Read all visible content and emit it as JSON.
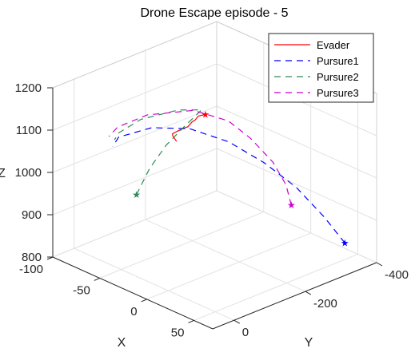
{
  "chart_data": {
    "type": "line",
    "title": "Drone Escape episode - 5",
    "xlabel": "X",
    "ylabel": "Y",
    "zlabel": "Z",
    "xlim": [
      -100,
      70
    ],
    "ylim": [
      -400,
      60
    ],
    "zlim": [
      800,
      1200
    ],
    "x_ticks": [
      -100,
      -50,
      0,
      50
    ],
    "y_ticks": [
      -400,
      -200,
      0
    ],
    "z_ticks": [
      800,
      900,
      1000,
      1100,
      1200
    ],
    "grid": true,
    "legend_position": "top-right",
    "series": [
      {
        "name": "Evader",
        "color": "#ff0000",
        "dash": "solid",
        "start_marker": true,
        "points": [
          [
            -40,
            -210,
            1105
          ],
          [
            -40,
            -190,
            1108
          ],
          [
            -38,
            -175,
            1105
          ],
          [
            -35,
            -160,
            1110
          ],
          [
            -32,
            -140,
            1108
          ],
          [
            -30,
            -120,
            1112
          ],
          [
            -28,
            -100,
            1115
          ],
          [
            -25,
            -85,
            1120
          ],
          [
            -22,
            -70,
            1125
          ],
          [
            -18,
            -60,
            1128
          ],
          [
            -12,
            -55,
            1122
          ]
        ]
      },
      {
        "name": "Pursure1",
        "color": "#0000ff",
        "dash": "8,6",
        "start_marker": true,
        "points": [
          [
            40,
            -390,
            820
          ],
          [
            30,
            -360,
            880
          ],
          [
            15,
            -320,
            950
          ],
          [
            0,
            -270,
            1010
          ],
          [
            -15,
            -210,
            1065
          ],
          [
            -30,
            -140,
            1105
          ],
          [
            -40,
            -60,
            1125
          ],
          [
            -45,
            20,
            1125
          ],
          [
            -40,
            50,
            1118
          ]
        ]
      },
      {
        "name": "Pursure2",
        "color": "#2e8b57",
        "dash": "8,6",
        "start_marker": true,
        "points": [
          [
            -30,
            10,
            1000
          ],
          [
            -35,
            -40,
            1040
          ],
          [
            -40,
            -100,
            1070
          ],
          [
            -42,
            -160,
            1095
          ],
          [
            -44,
            -210,
            1112
          ],
          [
            -46,
            -150,
            1130
          ],
          [
            -48,
            -50,
            1140
          ],
          [
            -45,
            20,
            1135
          ],
          [
            -42,
            40,
            1128
          ]
        ]
      },
      {
        "name": "Pursure3",
        "color": "#cc00cc",
        "dash": "8,6",
        "start_marker": true,
        "points": [
          [
            40,
            -240,
            960
          ],
          [
            38,
            -230,
            1010
          ],
          [
            30,
            -215,
            1060
          ],
          [
            10,
            -205,
            1100
          ],
          [
            -10,
            -195,
            1125
          ],
          [
            -30,
            -150,
            1145
          ],
          [
            -45,
            -60,
            1150
          ],
          [
            -50,
            10,
            1140
          ],
          [
            -48,
            40,
            1130
          ]
        ]
      }
    ]
  }
}
